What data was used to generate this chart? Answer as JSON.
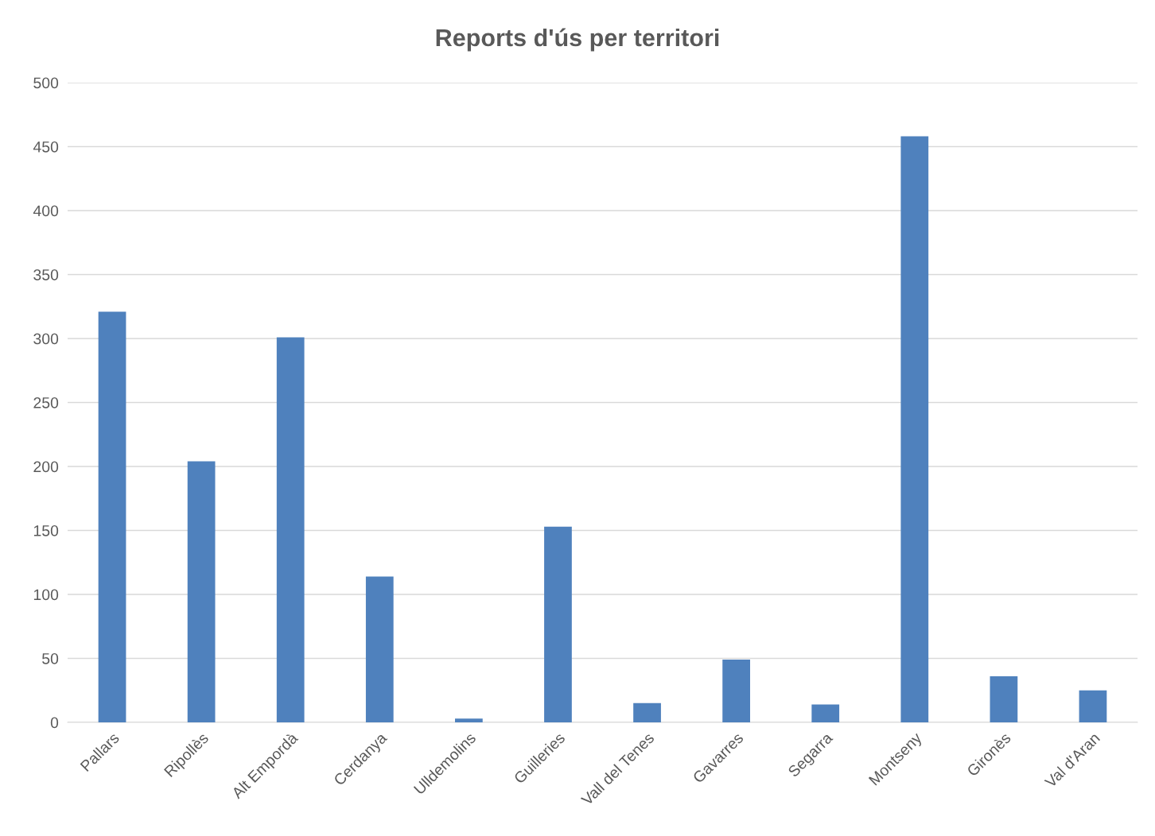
{
  "chart_data": {
    "type": "bar",
    "title": "Reports d'ús per territori",
    "categories": [
      "Pallars",
      "Ripollès",
      "Alt Empordà",
      "Cerdanya",
      "Ulldemolins",
      "Guilleries",
      "Vall del Tenes",
      "Gavarres",
      "Segarra",
      "Montseny",
      "Gironès",
      "Val d'Aran"
    ],
    "values": [
      321,
      204,
      301,
      114,
      3,
      153,
      15,
      49,
      14,
      458,
      36,
      25
    ],
    "color": "#4f81bd",
    "ylim": [
      0,
      500
    ],
    "yticks": [
      0,
      50,
      100,
      150,
      200,
      250,
      300,
      350,
      400,
      450,
      500
    ],
    "grid": "y",
    "legend": false
  }
}
